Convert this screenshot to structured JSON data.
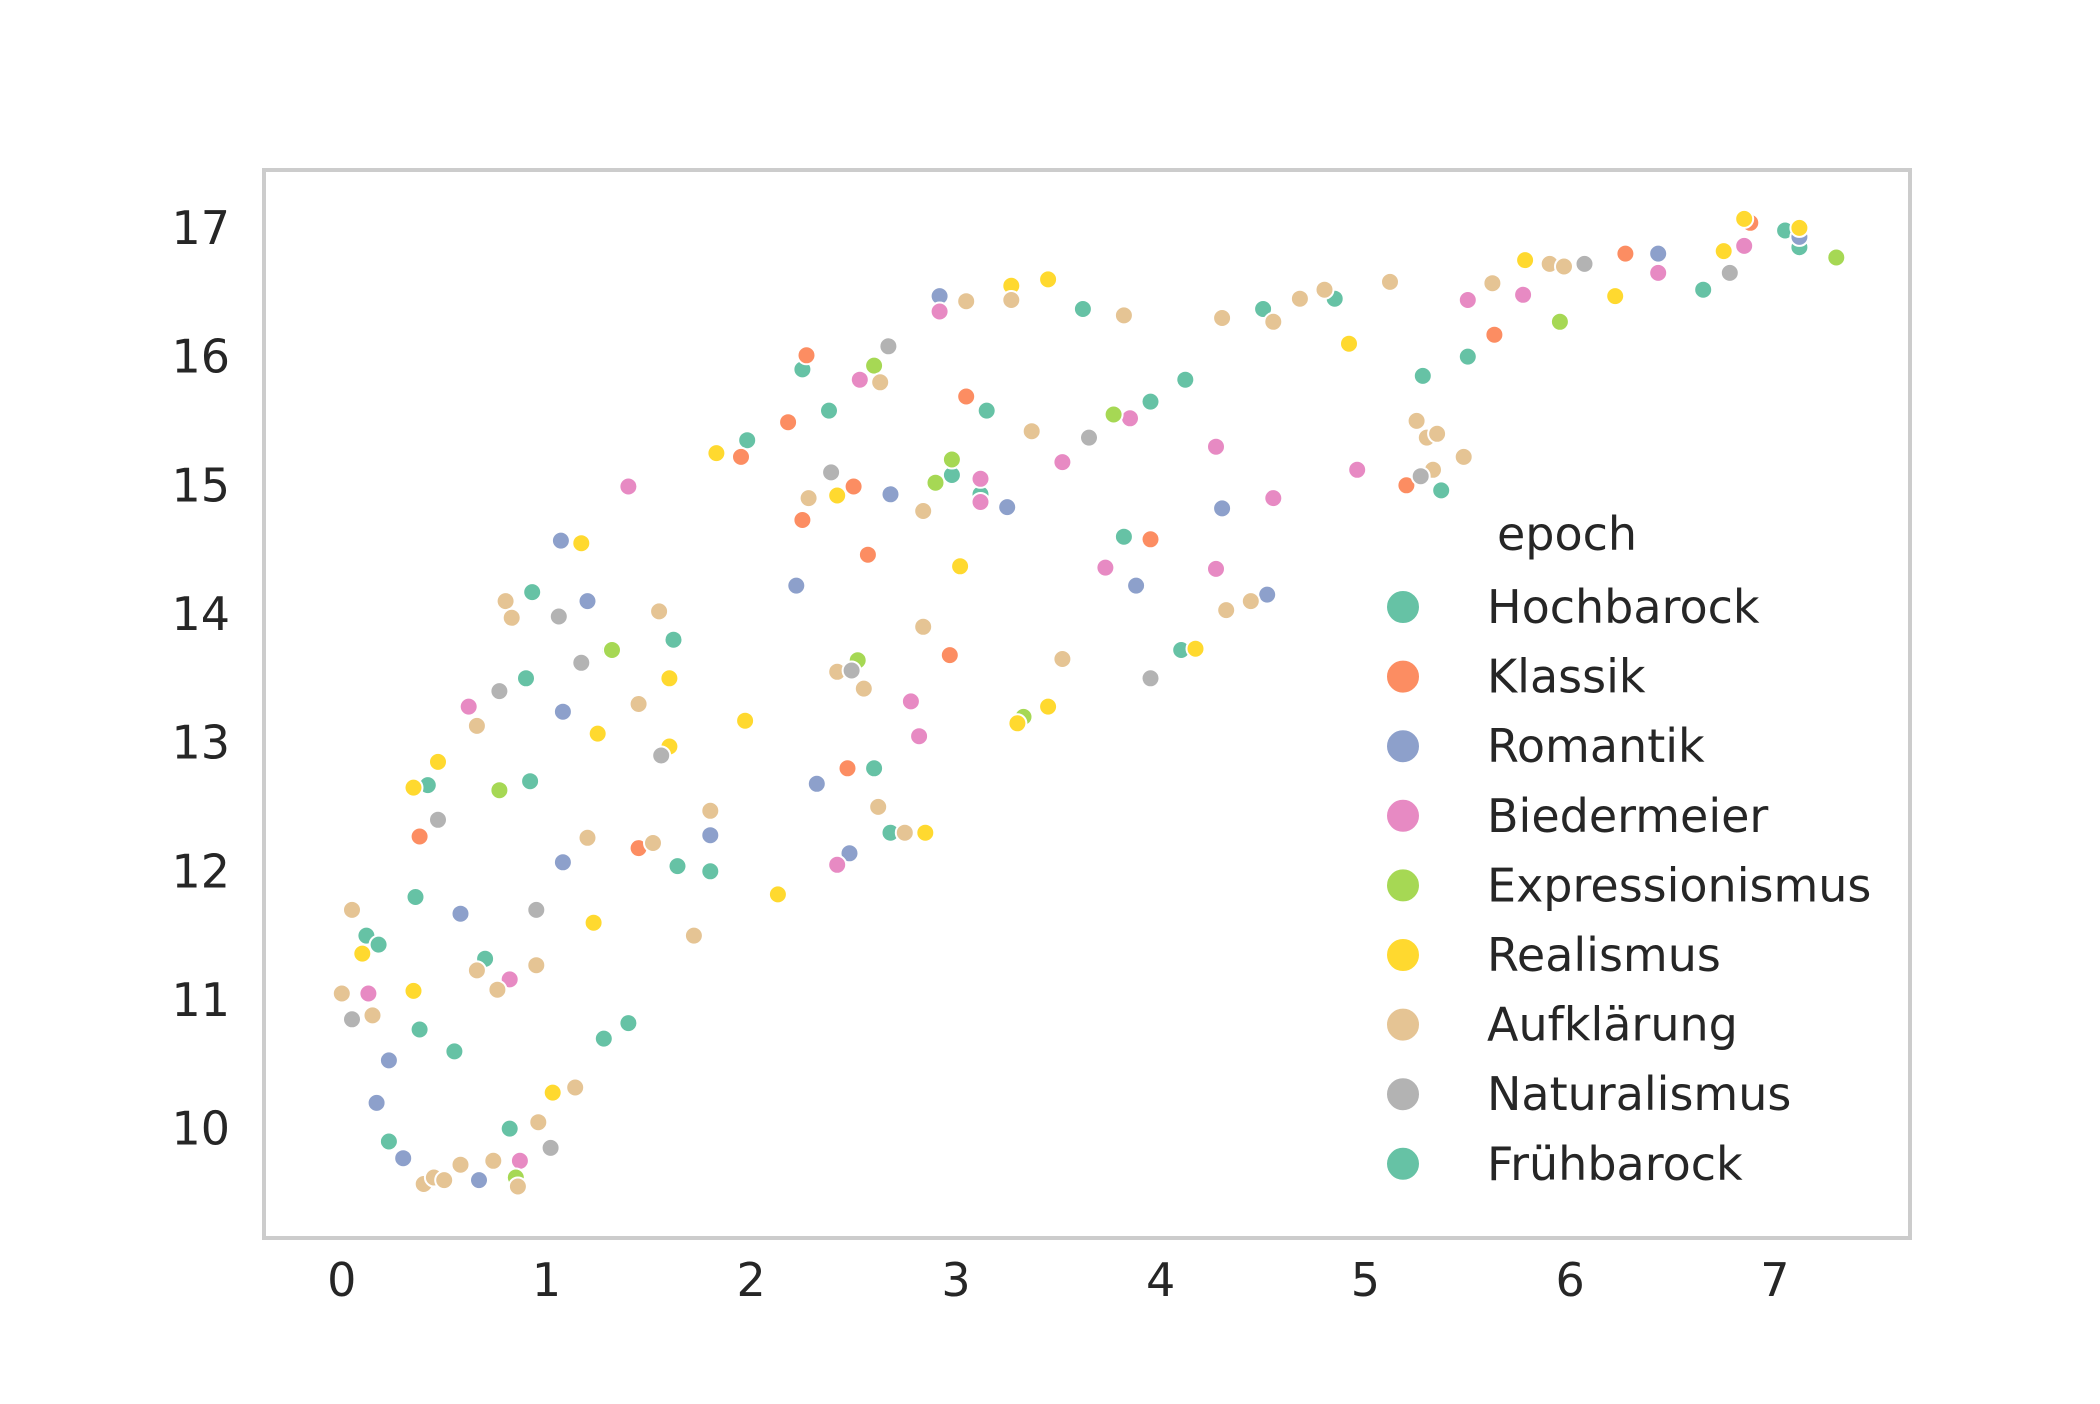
{
  "chart_data": {
    "type": "scatter",
    "title": "",
    "xlabel": "",
    "ylabel": "",
    "xlim": [
      -0.38,
      7.66
    ],
    "ylim": [
      9.15,
      17.45
    ],
    "xticks": [
      "0",
      "1",
      "2",
      "3",
      "4",
      "5",
      "6",
      "7"
    ],
    "yticks": [
      "10",
      "11",
      "12",
      "13",
      "14",
      "15",
      "16",
      "17"
    ],
    "grid": false,
    "legend": {
      "title": "epoch",
      "placement": "center-right"
    },
    "series": [
      {
        "name": "Hochbarock",
        "color": "#66c2a5",
        "points": [
          [
            0.12,
            11.5
          ],
          [
            0.18,
            11.43
          ],
          [
            0.36,
            11.8
          ],
          [
            0.38,
            10.77
          ],
          [
            0.55,
            10.6
          ],
          [
            0.23,
            9.9
          ],
          [
            0.82,
            10.0
          ],
          [
            0.7,
            11.32
          ],
          [
            0.92,
            12.7
          ],
          [
            0.42,
            12.67
          ],
          [
            0.9,
            13.5
          ],
          [
            0.93,
            14.17
          ],
          [
            1.31,
            13.72
          ],
          [
            1.28,
            10.7
          ],
          [
            1.4,
            10.82
          ],
          [
            1.62,
            13.8
          ],
          [
            1.64,
            12.04
          ],
          [
            1.8,
            12.0
          ],
          [
            2.25,
            15.9
          ],
          [
            2.38,
            15.58
          ],
          [
            2.6,
            12.8
          ],
          [
            2.68,
            12.3
          ],
          [
            2.98,
            15.08
          ],
          [
            3.12,
            14.93
          ],
          [
            3.15,
            15.58
          ],
          [
            3.62,
            16.37
          ],
          [
            3.82,
            14.6
          ],
          [
            3.95,
            15.65
          ],
          [
            4.12,
            15.82
          ],
          [
            4.1,
            13.72
          ],
          [
            4.5,
            16.37
          ],
          [
            4.85,
            16.45
          ],
          [
            5.28,
            15.85
          ],
          [
            5.37,
            14.96
          ],
          [
            5.5,
            16.0
          ],
          [
            6.65,
            16.52
          ],
          [
            7.05,
            16.98
          ],
          [
            7.12,
            16.85
          ],
          [
            1.98,
            15.35
          ]
        ]
      },
      {
        "name": "Klassik",
        "color": "#fc8d62",
        "points": [
          [
            0.38,
            12.27
          ],
          [
            1.45,
            12.18
          ],
          [
            1.95,
            15.22
          ],
          [
            2.18,
            15.49
          ],
          [
            2.25,
            14.73
          ],
          [
            2.27,
            16.01
          ],
          [
            2.47,
            12.8
          ],
          [
            2.5,
            14.99
          ],
          [
            2.57,
            14.46
          ],
          [
            2.97,
            13.68
          ],
          [
            3.05,
            15.69
          ],
          [
            3.95,
            14.58
          ],
          [
            5.2,
            15.0
          ],
          [
            5.63,
            16.17
          ],
          [
            6.27,
            16.8
          ],
          [
            6.88,
            17.04
          ]
        ]
      },
      {
        "name": "Romantik",
        "color": "#8da0cb",
        "points": [
          [
            0.23,
            10.53
          ],
          [
            0.17,
            10.2
          ],
          [
            0.3,
            9.77
          ],
          [
            0.67,
            9.6
          ],
          [
            0.58,
            11.67
          ],
          [
            1.08,
            12.07
          ],
          [
            1.07,
            14.57
          ],
          [
            1.08,
            13.24
          ],
          [
            1.2,
            14.1
          ],
          [
            1.8,
            12.28
          ],
          [
            2.22,
            14.22
          ],
          [
            2.32,
            12.68
          ],
          [
            2.48,
            12.14
          ],
          [
            2.68,
            14.93
          ],
          [
            2.92,
            16.47
          ],
          [
            3.25,
            14.83
          ],
          [
            3.88,
            14.22
          ],
          [
            4.3,
            14.82
          ],
          [
            4.52,
            14.15
          ],
          [
            6.43,
            16.8
          ],
          [
            7.12,
            16.93
          ]
        ]
      },
      {
        "name": "Biedermeier",
        "color": "#e78ac3",
        "points": [
          [
            0.13,
            11.05
          ],
          [
            0.62,
            13.28
          ],
          [
            0.82,
            11.16
          ],
          [
            0.87,
            9.75
          ],
          [
            1.4,
            14.99
          ],
          [
            2.42,
            12.05
          ],
          [
            2.53,
            15.82
          ],
          [
            2.78,
            13.32
          ],
          [
            2.82,
            13.05
          ],
          [
            2.92,
            16.35
          ],
          [
            3.12,
            14.87
          ],
          [
            3.12,
            15.05
          ],
          [
            3.52,
            15.18
          ],
          [
            3.73,
            14.36
          ],
          [
            3.85,
            15.52
          ],
          [
            4.27,
            15.3
          ],
          [
            4.27,
            14.35
          ],
          [
            4.55,
            14.9
          ],
          [
            4.96,
            15.12
          ],
          [
            5.5,
            16.44
          ],
          [
            5.77,
            16.48
          ],
          [
            6.43,
            16.65
          ],
          [
            6.85,
            16.86
          ]
        ]
      },
      {
        "name": "Expressionismus",
        "color": "#a6d854",
        "points": [
          [
            0.77,
            12.63
          ],
          [
            0.85,
            9.62
          ],
          [
            1.32,
            13.72
          ],
          [
            2.52,
            13.64
          ],
          [
            2.6,
            15.93
          ],
          [
            2.9,
            15.02
          ],
          [
            2.98,
            15.2
          ],
          [
            3.33,
            13.2
          ],
          [
            3.77,
            15.55
          ],
          [
            5.95,
            16.27
          ],
          [
            7.3,
            16.77
          ]
        ]
      },
      {
        "name": "Realismus",
        "color": "#ffd92f",
        "points": [
          [
            0.1,
            11.36
          ],
          [
            0.35,
            11.07
          ],
          [
            0.35,
            12.65
          ],
          [
            0.47,
            12.85
          ],
          [
            1.03,
            10.28
          ],
          [
            1.17,
            14.55
          ],
          [
            1.23,
            11.6
          ],
          [
            1.25,
            13.07
          ],
          [
            1.6,
            13.5
          ],
          [
            1.6,
            12.97
          ],
          [
            1.83,
            15.25
          ],
          [
            1.97,
            13.17
          ],
          [
            2.13,
            11.82
          ],
          [
            2.42,
            14.92
          ],
          [
            2.85,
            12.3
          ],
          [
            3.02,
            14.37
          ],
          [
            3.27,
            16.55
          ],
          [
            3.3,
            13.15
          ],
          [
            3.45,
            16.6
          ],
          [
            3.45,
            13.28
          ],
          [
            4.17,
            13.73
          ],
          [
            4.92,
            16.1
          ],
          [
            5.78,
            16.75
          ],
          [
            6.22,
            16.47
          ],
          [
            6.75,
            16.82
          ],
          [
            6.85,
            17.07
          ],
          [
            7.12,
            17.0
          ]
        ]
      },
      {
        "name": "Aufklärung",
        "color": "#e5c494",
        "points": [
          [
            0.0,
            11.05
          ],
          [
            0.05,
            11.7
          ],
          [
            0.15,
            10.88
          ],
          [
            0.4,
            9.57
          ],
          [
            0.45,
            9.62
          ],
          [
            0.5,
            9.6
          ],
          [
            0.58,
            9.72
          ],
          [
            0.66,
            11.23
          ],
          [
            0.66,
            13.13
          ],
          [
            0.74,
            9.75
          ],
          [
            0.76,
            11.08
          ],
          [
            0.8,
            14.1
          ],
          [
            0.83,
            13.97
          ],
          [
            0.86,
            9.55
          ],
          [
            0.95,
            11.27
          ],
          [
            0.96,
            10.05
          ],
          [
            1.14,
            10.32
          ],
          [
            1.2,
            12.26
          ],
          [
            1.45,
            13.3
          ],
          [
            1.52,
            12.22
          ],
          [
            1.55,
            14.02
          ],
          [
            1.72,
            11.5
          ],
          [
            1.8,
            12.47
          ],
          [
            2.28,
            14.9
          ],
          [
            2.42,
            13.55
          ],
          [
            2.55,
            13.42
          ],
          [
            2.62,
            12.5
          ],
          [
            2.63,
            15.8
          ],
          [
            2.75,
            12.3
          ],
          [
            2.84,
            13.9
          ],
          [
            2.84,
            14.8
          ],
          [
            3.05,
            16.43
          ],
          [
            3.27,
            16.44
          ],
          [
            3.37,
            15.42
          ],
          [
            3.52,
            13.65
          ],
          [
            3.82,
            16.32
          ],
          [
            4.3,
            16.3
          ],
          [
            4.32,
            14.03
          ],
          [
            4.44,
            14.1
          ],
          [
            4.55,
            16.27
          ],
          [
            4.68,
            16.45
          ],
          [
            4.8,
            16.52
          ],
          [
            5.12,
            16.58
          ],
          [
            5.25,
            15.5
          ],
          [
            5.3,
            15.37
          ],
          [
            5.33,
            15.12
          ],
          [
            5.35,
            15.4
          ],
          [
            5.48,
            15.22
          ],
          [
            5.62,
            16.57
          ],
          [
            5.9,
            16.72
          ],
          [
            5.97,
            16.7
          ]
        ]
      },
      {
        "name": "Naturalismus",
        "color": "#b3b3b3",
        "points": [
          [
            0.05,
            10.85
          ],
          [
            0.47,
            12.4
          ],
          [
            0.77,
            13.4
          ],
          [
            0.95,
            11.7
          ],
          [
            1.02,
            9.85
          ],
          [
            1.06,
            13.98
          ],
          [
            1.17,
            13.62
          ],
          [
            1.56,
            12.9
          ],
          [
            2.39,
            15.1
          ],
          [
            2.49,
            13.56
          ],
          [
            2.67,
            16.08
          ],
          [
            3.65,
            15.37
          ],
          [
            3.95,
            13.5
          ],
          [
            5.27,
            15.07
          ],
          [
            6.07,
            16.72
          ],
          [
            6.78,
            16.65
          ]
        ]
      },
      {
        "name": "Frühbarock",
        "color": "#66c2a5",
        "points": []
      }
    ]
  }
}
